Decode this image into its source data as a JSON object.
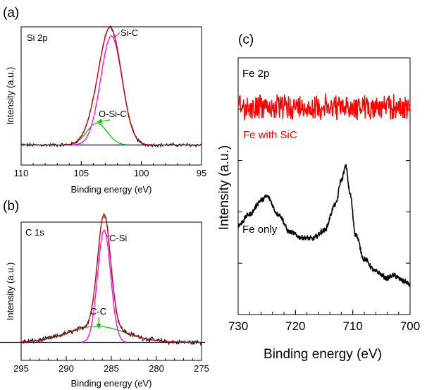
{
  "chart_data": [
    {
      "panel": "(a)",
      "corner_label": "Si 2p",
      "type": "line",
      "xlabel": "Binding energy (eV)",
      "ylabel": "Intensity (a.u.)",
      "xlim": [
        110,
        95
      ],
      "x_ticks": [
        110,
        105,
        100,
        95
      ],
      "peaks": [
        {
          "name": "Si-C",
          "center": 102.5,
          "fwhm": 2.1,
          "height": 0.95,
          "color": "#ff00ff"
        },
        {
          "name": "O-Si-C",
          "center": 103.7,
          "fwhm": 2.0,
          "height": 0.19,
          "color": "#00cc00"
        }
      ],
      "annotations": [
        "Si-C",
        "O-Si-C"
      ]
    },
    {
      "panel": "(b)",
      "corner_label": "C 1s",
      "type": "line",
      "xlabel": "Binding energy (eV)",
      "ylabel": "Intensity (a.u.)",
      "xlim": [
        295,
        275
      ],
      "x_ticks": [
        295,
        290,
        285,
        280,
        275
      ],
      "peaks": [
        {
          "name": "C-Si",
          "center": 285.8,
          "fwhm": 1.7,
          "height": 0.98,
          "color": "#ff00ff"
        },
        {
          "name": "C-C",
          "center": 286.6,
          "fwhm": 7.5,
          "height": 0.14,
          "color": "#00cc00"
        }
      ],
      "annotations": [
        "C-Si",
        "C-C"
      ]
    },
    {
      "panel": "(c)",
      "corner_label": "Fe 2p",
      "type": "line",
      "xlabel": "Binding energy (eV)",
      "ylabel": "Intensity (a.u.)",
      "xlim": [
        730,
        700
      ],
      "x_ticks": [
        730,
        720,
        710,
        700
      ],
      "series": [
        {
          "name": "Fe with SiC",
          "color": "#ff0000"
        },
        {
          "name": "Fe only",
          "color": "#000000"
        }
      ],
      "fe_only_profile": {
        "x": [
          730,
          728,
          726,
          725,
          723,
          721,
          719,
          717,
          715,
          713,
          712,
          711.2,
          710.5,
          709.5,
          708,
          706,
          704,
          703,
          701,
          700
        ],
        "y": [
          0.47,
          0.55,
          0.65,
          0.68,
          0.55,
          0.42,
          0.38,
          0.37,
          0.43,
          0.62,
          0.8,
          0.9,
          0.7,
          0.4,
          0.22,
          0.13,
          0.08,
          0.1,
          0.06,
          0.03
        ]
      }
    }
  ]
}
